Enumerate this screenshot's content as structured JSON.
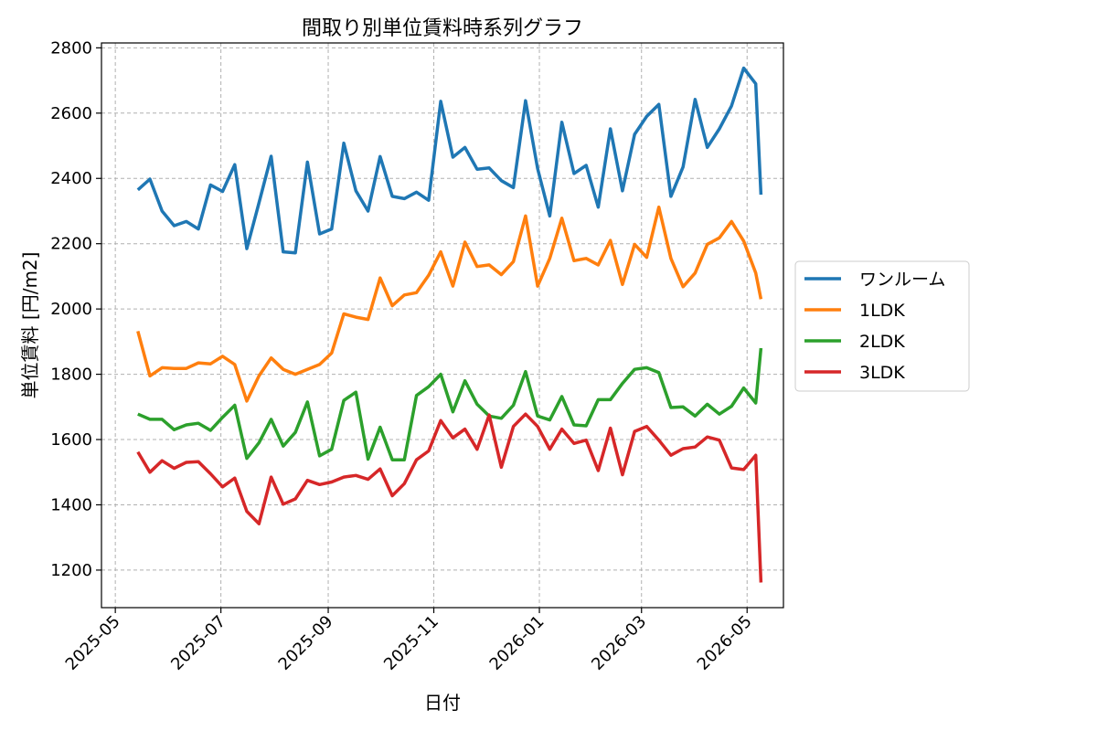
{
  "chart_data": {
    "type": "line",
    "title": "間取り別単位賃料時系列グラフ",
    "xlabel": "日付",
    "ylabel": "単位賃料 [円/m2]",
    "xlim": [
      "2025-04-23",
      "2026-05-22"
    ],
    "ylim": [
      1085,
      2815
    ],
    "yticks": [
      1200,
      1400,
      1600,
      1800,
      2000,
      2200,
      2400,
      2600,
      2800
    ],
    "xticks": [
      "2025-05",
      "2025-07",
      "2025-09",
      "2025-11",
      "2026-01",
      "2026-03",
      "2026-05"
    ],
    "grid": true,
    "legend_position": "right-outside",
    "x": [
      "2025-05-14",
      "2025-05-21",
      "2025-05-28",
      "2025-06-04",
      "2025-06-11",
      "2025-06-18",
      "2025-06-25",
      "2025-07-02",
      "2025-07-09",
      "2025-07-16",
      "2025-07-23",
      "2025-07-30",
      "2025-08-06",
      "2025-08-13",
      "2025-08-20",
      "2025-08-27",
      "2025-09-03",
      "2025-09-10",
      "2025-09-17",
      "2025-09-24",
      "2025-10-01",
      "2025-10-08",
      "2025-10-15",
      "2025-10-22",
      "2025-10-29",
      "2025-11-05",
      "2025-11-12",
      "2025-11-19",
      "2025-11-26",
      "2025-12-03",
      "2025-12-10",
      "2025-12-17",
      "2025-12-24",
      "2025-12-31",
      "2026-01-07",
      "2026-01-14",
      "2026-01-21",
      "2026-01-28",
      "2026-02-04",
      "2026-02-11",
      "2026-02-18",
      "2026-02-25",
      "2026-03-04",
      "2026-03-11",
      "2026-03-18",
      "2026-03-25",
      "2026-04-01",
      "2026-04-08",
      "2026-04-15",
      "2026-04-22",
      "2026-04-29",
      "2026-05-06",
      "2026-05-09"
    ],
    "series": [
      {
        "name": "ワンルーム",
        "color": "#1f77b4",
        "values": [
          2365,
          2398,
          2300,
          2255,
          2268,
          2245,
          2380,
          2360,
          2442,
          2185,
          2325,
          2468,
          2175,
          2172,
          2450,
          2230,
          2245,
          2508,
          2362,
          2300,
          2467,
          2345,
          2338,
          2358,
          2333,
          2636,
          2465,
          2495,
          2428,
          2432,
          2393,
          2372,
          2638,
          2430,
          2285,
          2572,
          2415,
          2440,
          2312,
          2552,
          2362,
          2535,
          2590,
          2627,
          2345,
          2435,
          2642,
          2495,
          2552,
          2622,
          2738,
          2690,
          2350
        ]
      },
      {
        "name": "1LDK",
        "color": "#ff7f0e",
        "values": [
          1932,
          1795,
          1820,
          1818,
          1818,
          1835,
          1832,
          1855,
          1830,
          1718,
          1795,
          1850,
          1815,
          1800,
          1815,
          1830,
          1865,
          1985,
          1975,
          1968,
          2095,
          2010,
          2043,
          2050,
          2103,
          2175,
          2070,
          2205,
          2130,
          2135,
          2105,
          2145,
          2285,
          2070,
          2155,
          2278,
          2148,
          2155,
          2135,
          2210,
          2075,
          2198,
          2158,
          2312,
          2155,
          2068,
          2110,
          2198,
          2218,
          2268,
          2208,
          2110,
          2030
        ]
      },
      {
        "name": "2LDK",
        "color": "#2ca02c",
        "values": [
          1678,
          1662,
          1662,
          1630,
          1645,
          1650,
          1628,
          1668,
          1705,
          1542,
          1590,
          1662,
          1580,
          1622,
          1715,
          1550,
          1570,
          1720,
          1745,
          1540,
          1638,
          1538,
          1538,
          1735,
          1762,
          1800,
          1685,
          1780,
          1708,
          1672,
          1665,
          1705,
          1808,
          1672,
          1660,
          1732,
          1645,
          1642,
          1722,
          1722,
          1772,
          1815,
          1820,
          1805,
          1698,
          1700,
          1672,
          1708,
          1678,
          1702,
          1758,
          1712,
          1880
        ]
      },
      {
        "name": "3LDK",
        "color": "#d62728",
        "values": [
          1562,
          1500,
          1535,
          1512,
          1530,
          1532,
          1495,
          1455,
          1482,
          1380,
          1342,
          1485,
          1402,
          1418,
          1475,
          1462,
          1470,
          1485,
          1490,
          1478,
          1510,
          1428,
          1465,
          1538,
          1565,
          1658,
          1605,
          1632,
          1570,
          1675,
          1515,
          1640,
          1678,
          1640,
          1570,
          1632,
          1588,
          1598,
          1505,
          1635,
          1492,
          1625,
          1640,
          1598,
          1552,
          1572,
          1577,
          1608,
          1598,
          1513,
          1508,
          1552,
          1162
        ]
      }
    ]
  }
}
